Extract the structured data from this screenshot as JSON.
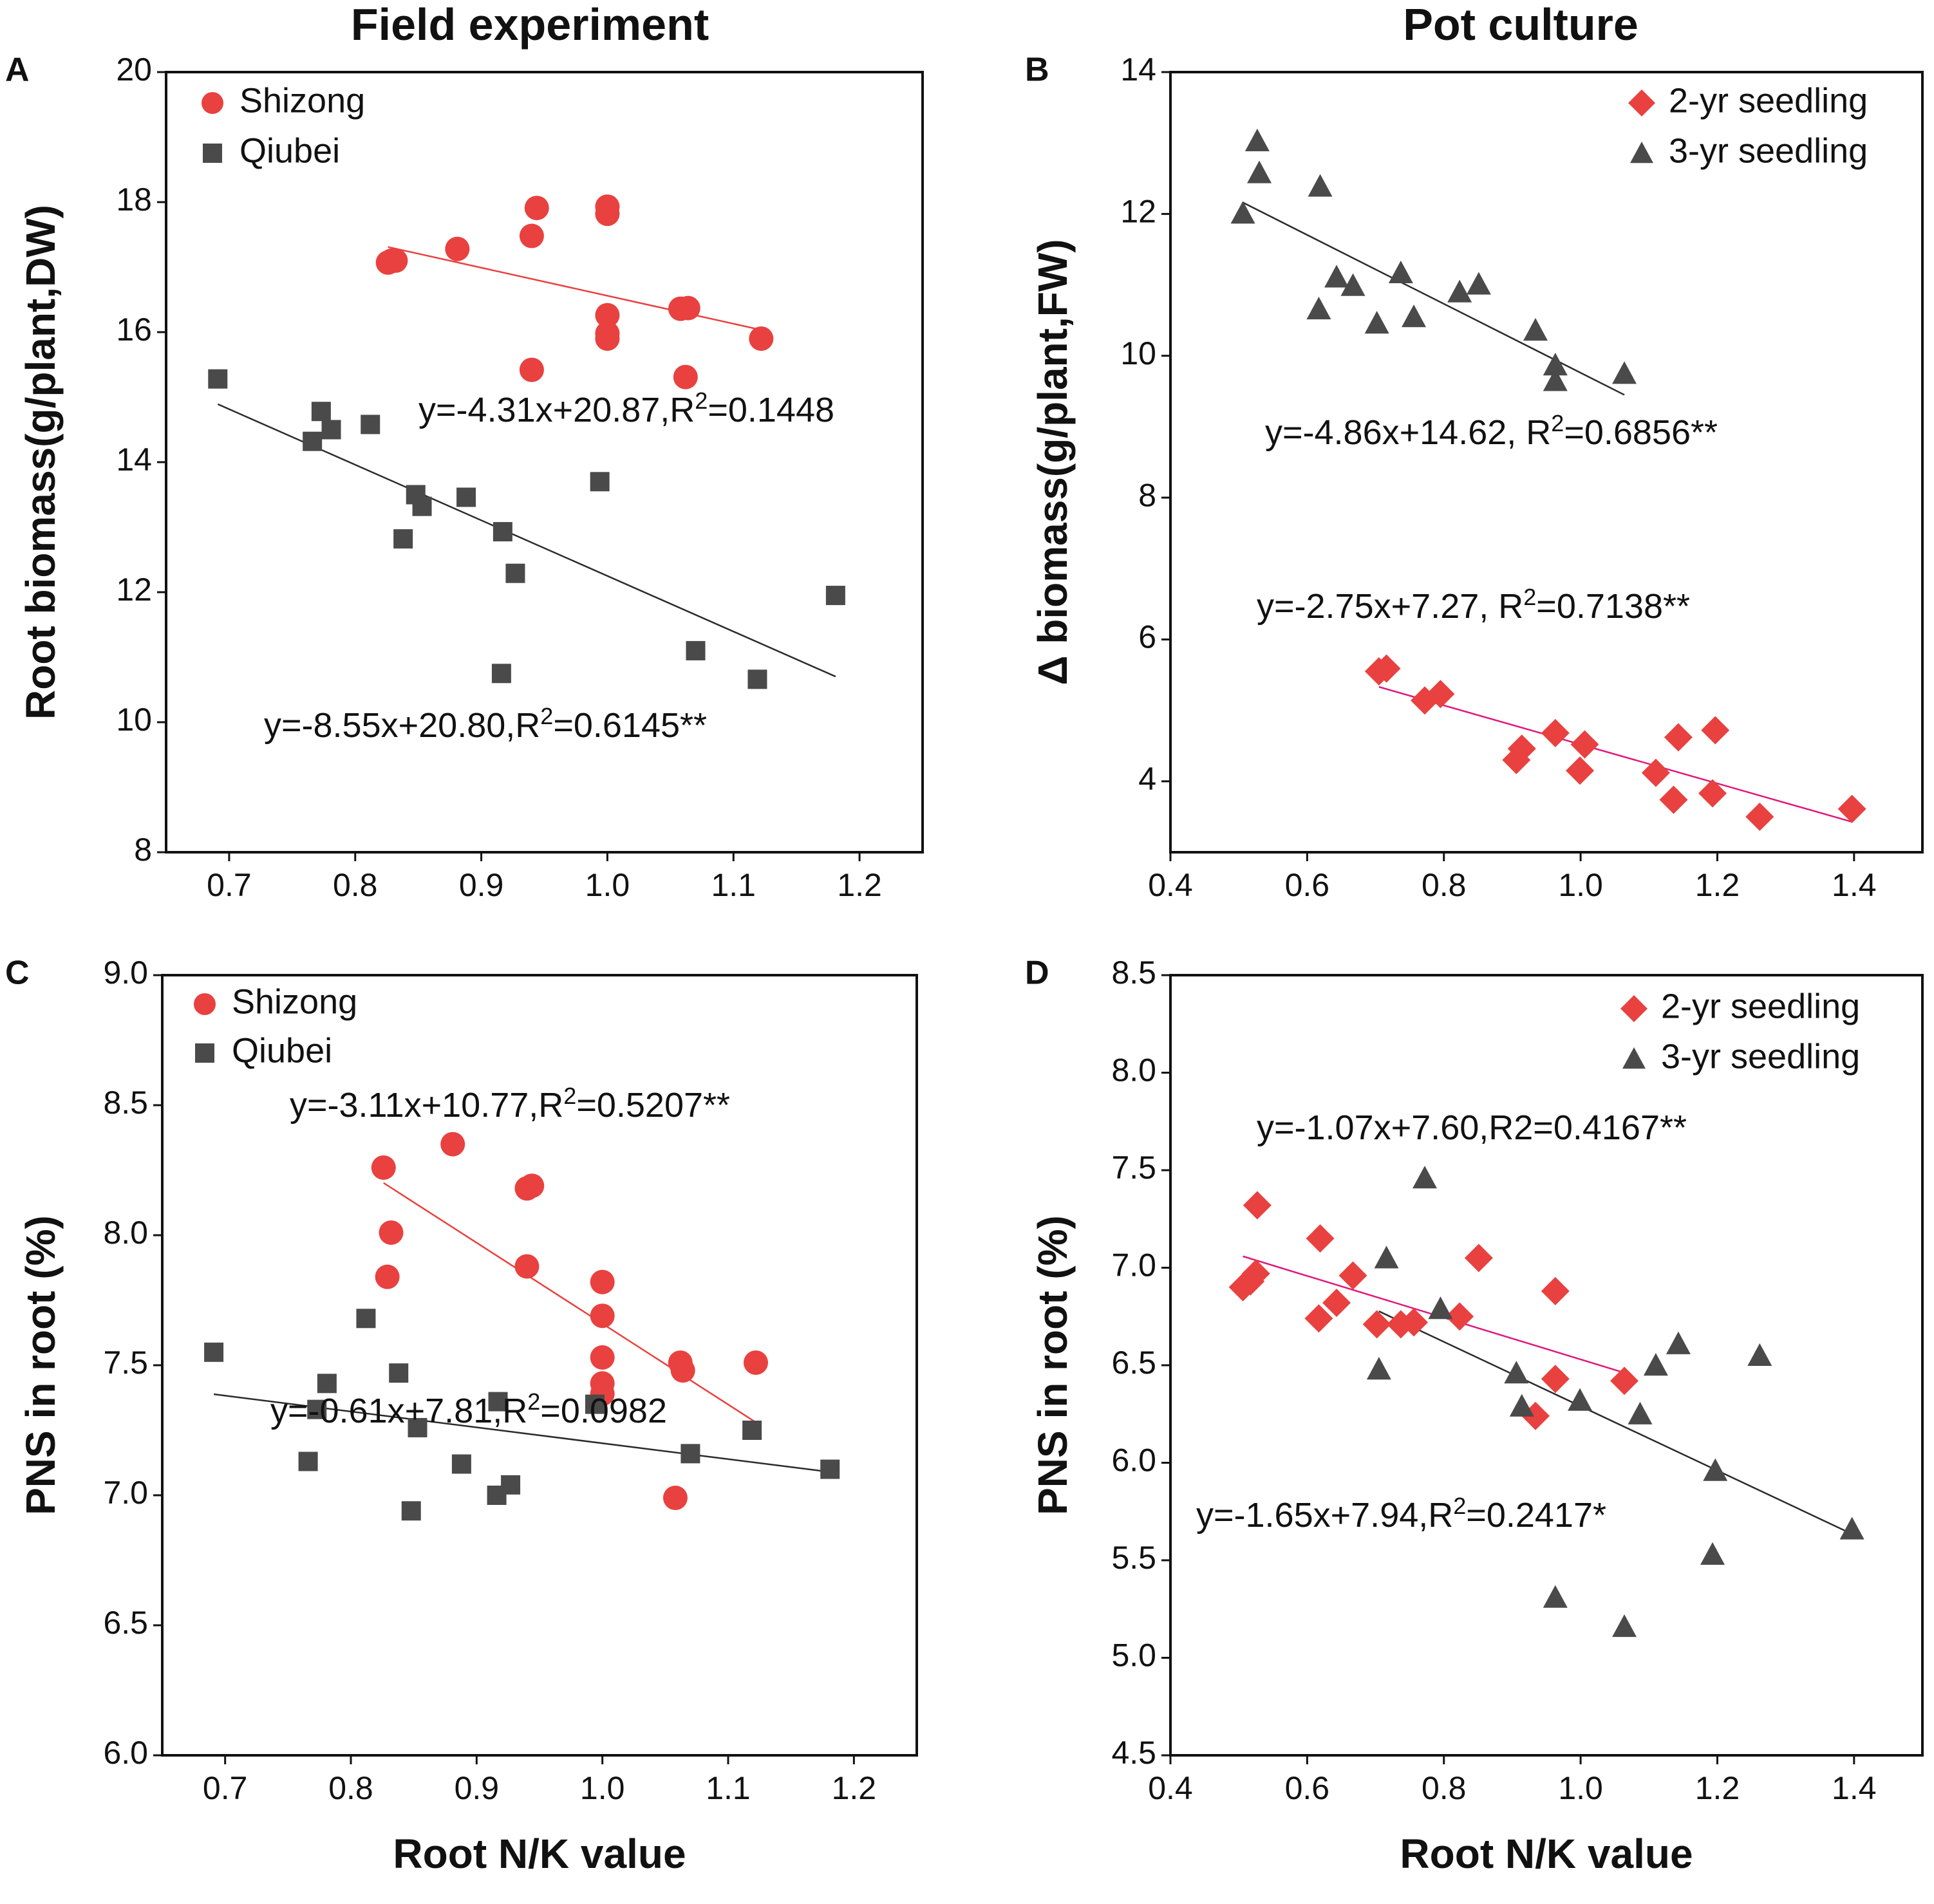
{
  "figure": {
    "column_titles": [
      "Field experiment",
      "Pot culture"
    ],
    "colors": {
      "red_marker": "#e8413f",
      "red_line": "#e8413f",
      "magenta_line": "#e0197a",
      "dark_marker": "#4a4a4a",
      "dark_line": "#2b2b2b",
      "axis": "#111111"
    }
  },
  "chart_data": [
    {
      "id": "A",
      "type": "scatter",
      "panel_label": "A",
      "xlabel": "",
      "ylabel": "Root biomass(g/plant,DW)",
      "xlim": [
        0.65,
        1.25
      ],
      "ylim": [
        8,
        20
      ],
      "xticks": [
        0.7,
        0.8,
        0.9,
        1.0,
        1.1,
        1.2
      ],
      "xtick_labels": [
        "0.7",
        "0.8",
        "0.9",
        "1.0",
        "1.1",
        "1.2"
      ],
      "yticks": [
        8,
        10,
        12,
        14,
        16,
        18,
        20
      ],
      "ytick_labels": [
        "8",
        "10",
        "12",
        "14",
        "16",
        "18",
        "20"
      ],
      "legend": [
        "Shizong",
        "Qiubei"
      ],
      "series": [
        {
          "name": "Shizong",
          "marker": "circle",
          "color": "red",
          "points": [
            [
              0.826,
              17.07
            ],
            [
              0.829,
              17.1
            ],
            [
              0.832,
              17.1
            ],
            [
              0.881,
              17.28
            ],
            [
              0.94,
              15.42
            ],
            [
              0.94,
              17.48
            ],
            [
              0.944,
              17.91
            ],
            [
              1.0,
              17.93
            ],
            [
              1.0,
              17.82
            ],
            [
              1.0,
              16.26
            ],
            [
              1.0,
              15.98
            ],
            [
              1.0,
              15.9
            ],
            [
              1.058,
              16.36
            ],
            [
              1.064,
              16.37
            ],
            [
              1.062,
              15.31
            ],
            [
              1.122,
              15.9
            ]
          ],
          "fit": {
            "x": [
              0.826,
              1.122
            ],
            "slope": -4.31,
            "intercept": 20.87,
            "label": "y=-4.31x+20.87,R",
            "sup": "2",
            "tail": "=0.1448"
          }
        },
        {
          "name": "Qiubei",
          "marker": "square",
          "color": "dark",
          "points": [
            [
              0.691,
              15.28
            ],
            [
              0.766,
              14.32
            ],
            [
              0.773,
              14.78
            ],
            [
              0.781,
              14.5
            ],
            [
              0.812,
              14.58
            ],
            [
              0.838,
              12.82
            ],
            [
              0.848,
              13.5
            ],
            [
              0.853,
              13.32
            ],
            [
              0.888,
              13.46
            ],
            [
              0.917,
              12.93
            ],
            [
              0.927,
              12.29
            ],
            [
              0.916,
              10.75
            ],
            [
              0.994,
              13.7
            ],
            [
              1.07,
              11.1
            ],
            [
              1.119,
              10.66
            ],
            [
              1.181,
              11.95
            ]
          ],
          "fit": {
            "x": [
              0.691,
              1.181
            ],
            "slope": -8.55,
            "intercept": 20.8,
            "label": "y=-8.55x+20.80,R",
            "sup": "2",
            "tail": "=0.6145**"
          }
        }
      ]
    },
    {
      "id": "B",
      "type": "scatter",
      "panel_label": "B",
      "xlabel": "",
      "ylabel": "Δ biomass(g/plant,FW)",
      "xlim": [
        0.4,
        1.5
      ],
      "ylim": [
        3,
        14
      ],
      "xticks": [
        0.4,
        0.6,
        0.8,
        1.0,
        1.2,
        1.4
      ],
      "xtick_labels": [
        "0.4",
        "0.6",
        "0.8",
        "1.0",
        "1.2",
        "1.4"
      ],
      "yticks": [
        4,
        6,
        8,
        10,
        12,
        14
      ],
      "ytick_labels": [
        "4",
        "6",
        "8",
        "10",
        "12",
        "14"
      ],
      "legend": [
        "2-yr seedling",
        "3-yr seedling"
      ],
      "series": [
        {
          "name": "2-yr seedling",
          "marker": "diamond",
          "color": "red",
          "points": [
            [
              0.705,
              5.55
            ],
            [
              0.716,
              5.59
            ],
            [
              0.772,
              5.14
            ],
            [
              0.795,
              5.23
            ],
            [
              0.906,
              4.3
            ],
            [
              0.914,
              4.46
            ],
            [
              0.963,
              4.68
            ],
            [
              1.006,
              4.52
            ],
            [
              0.999,
              4.15
            ],
            [
              1.11,
              4.12
            ],
            [
              1.136,
              3.74
            ],
            [
              1.143,
              4.62
            ],
            [
              1.193,
              3.83
            ],
            [
              1.197,
              4.72
            ],
            [
              1.262,
              3.5
            ],
            [
              1.397,
              3.61
            ]
          ],
          "fit": {
            "x": [
              0.705,
              1.397
            ],
            "slope": -2.75,
            "intercept": 7.27,
            "label": "y=-2.75x+7.27, R",
            "sup": "2",
            "tail": "=0.7138**"
          }
        },
        {
          "name": "3-yr seedling",
          "marker": "triangle",
          "color": "dark",
          "points": [
            [
              0.506,
              12.01
            ],
            [
              0.527,
              13.03
            ],
            [
              0.53,
              12.58
            ],
            [
              0.619,
              12.39
            ],
            [
              0.617,
              10.66
            ],
            [
              0.643,
              11.11
            ],
            [
              0.667,
              10.99
            ],
            [
              0.702,
              10.46
            ],
            [
              0.737,
              11.17
            ],
            [
              0.756,
              10.55
            ],
            [
              0.823,
              10.9
            ],
            [
              0.851,
              11.01
            ],
            [
              0.934,
              10.36
            ],
            [
              0.963,
              9.87
            ],
            [
              0.963,
              9.65
            ],
            [
              1.064,
              9.75
            ]
          ],
          "fit": {
            "x": [
              0.506,
              1.064
            ],
            "slope": -4.86,
            "intercept": 14.62,
            "label": "y=-4.86x+14.62, R",
            "sup": "2",
            "tail": "=0.6856**"
          }
        }
      ]
    },
    {
      "id": "C",
      "type": "scatter",
      "panel_label": "C",
      "xlabel": "Root N/K value",
      "ylabel": "PNS in root (%)",
      "xlim": [
        0.65,
        1.25
      ],
      "ylim": [
        6.0,
        9.0
      ],
      "xticks": [
        0.7,
        0.8,
        0.9,
        1.0,
        1.1,
        1.2
      ],
      "xtick_labels": [
        "0.7",
        "0.8",
        "0.9",
        "1.0",
        "1.1",
        "1.2"
      ],
      "yticks": [
        6.0,
        6.5,
        7.0,
        7.5,
        8.0,
        8.5,
        9.0
      ],
      "ytick_labels": [
        "6.0",
        "6.5",
        "7.0",
        "7.5",
        "8.0",
        "8.5",
        "9.0"
      ],
      "legend": [
        "Shizong",
        "Qiubei"
      ],
      "series": [
        {
          "name": "Shizong",
          "marker": "circle",
          "color": "red",
          "points": [
            [
              0.826,
              8.26
            ],
            [
              0.829,
              7.84
            ],
            [
              0.832,
              8.01
            ],
            [
              0.881,
              8.35
            ],
            [
              0.94,
              8.18
            ],
            [
              0.944,
              8.19
            ],
            [
              0.94,
              7.88
            ],
            [
              1.0,
              7.82
            ],
            [
              1.0,
              7.69
            ],
            [
              1.0,
              7.53
            ],
            [
              1.0,
              7.43
            ],
            [
              1.0,
              7.39
            ],
            [
              1.062,
              7.51
            ],
            [
              1.064,
              7.48
            ],
            [
              1.058,
              6.99
            ],
            [
              1.122,
              7.51
            ]
          ],
          "fit": {
            "x": [
              0.826,
              1.122
            ],
            "slope": -3.11,
            "intercept": 10.77,
            "label": "y=-3.11x+10.77,R",
            "sup": "2",
            "tail": "=0.5207**"
          }
        },
        {
          "name": "Qiubei",
          "marker": "square",
          "color": "dark",
          "points": [
            [
              0.691,
              7.55
            ],
            [
              0.766,
              7.13
            ],
            [
              0.773,
              7.33
            ],
            [
              0.781,
              7.43
            ],
            [
              0.812,
              7.68
            ],
            [
              0.838,
              7.47
            ],
            [
              0.848,
              6.94
            ],
            [
              0.853,
              7.26
            ],
            [
              0.888,
              7.12
            ],
            [
              0.917,
              7.36
            ],
            [
              0.916,
              7.0
            ],
            [
              0.927,
              7.04
            ],
            [
              0.994,
              7.35
            ],
            [
              1.07,
              7.16
            ],
            [
              1.119,
              7.25
            ],
            [
              1.181,
              7.1
            ]
          ],
          "fit": {
            "x": [
              0.691,
              1.181
            ],
            "slope": -0.61,
            "intercept": 7.81,
            "label": "y=-0.61x+7.81,R",
            "sup": "2",
            "tail": "=0.0982"
          }
        }
      ]
    },
    {
      "id": "D",
      "type": "scatter",
      "panel_label": "D",
      "xlabel": "Root N/K value",
      "ylabel": "PNS in root (%)",
      "xlim": [
        0.4,
        1.5
      ],
      "ylim": [
        4.5,
        8.5
      ],
      "xticks": [
        0.4,
        0.6,
        0.8,
        1.0,
        1.2,
        1.4
      ],
      "xtick_labels": [
        "0.4",
        "0.6",
        "0.8",
        "1.0",
        "1.2",
        "1.4"
      ],
      "yticks": [
        4.5,
        5.0,
        5.5,
        6.0,
        6.5,
        7.0,
        7.5,
        8.0,
        8.5
      ],
      "ytick_labels": [
        "4.5",
        "5.0",
        "5.5",
        "6.0",
        "6.5",
        "7.0",
        "7.5",
        "8.0",
        "8.5"
      ],
      "legend": [
        "2-yr seedling",
        "3-yr seedling"
      ],
      "series": [
        {
          "name": "2-yr seedling",
          "marker": "diamond",
          "color": "red",
          "points": [
            [
              0.506,
              6.9
            ],
            [
              0.517,
              6.93
            ],
            [
              0.527,
              7.32
            ],
            [
              0.525,
              6.97
            ],
            [
              0.619,
              7.15
            ],
            [
              0.617,
              6.74
            ],
            [
              0.643,
              6.82
            ],
            [
              0.667,
              6.96
            ],
            [
              0.702,
              6.71
            ],
            [
              0.737,
              6.71
            ],
            [
              0.756,
              6.72
            ],
            [
              0.823,
              6.75
            ],
            [
              0.851,
              7.05
            ],
            [
              0.934,
              6.24
            ],
            [
              0.963,
              6.88
            ],
            [
              0.963,
              6.43
            ],
            [
              1.064,
              6.42
            ]
          ],
          "fit": {
            "x": [
              0.506,
              1.064
            ],
            "slope": -1.07,
            "intercept": 7.6,
            "label": "y=-1.07x+7.60,R2=0.4167**",
            "sup": "",
            "tail": ""
          }
        },
        {
          "name": "3-yr seedling",
          "marker": "triangle",
          "color": "dark",
          "points": [
            [
              0.705,
              6.48
            ],
            [
              0.716,
              7.05
            ],
            [
              0.772,
              7.46
            ],
            [
              0.795,
              6.79
            ],
            [
              0.906,
              6.46
            ],
            [
              0.914,
              6.29
            ],
            [
              0.963,
              5.31
            ],
            [
              0.999,
              6.32
            ],
            [
              1.064,
              5.16
            ],
            [
              1.087,
              6.25
            ],
            [
              1.11,
              6.5
            ],
            [
              1.143,
              6.61
            ],
            [
              1.193,
              5.53
            ],
            [
              1.197,
              5.96
            ],
            [
              1.262,
              6.55
            ],
            [
              1.397,
              5.66
            ]
          ],
          "fit": {
            "x": [
              0.705,
              1.397
            ],
            "slope": -1.65,
            "intercept": 7.94,
            "label": "y=-1.65x+7.94,R",
            "sup": "2",
            "tail": "=0.2417*"
          }
        }
      ]
    }
  ]
}
